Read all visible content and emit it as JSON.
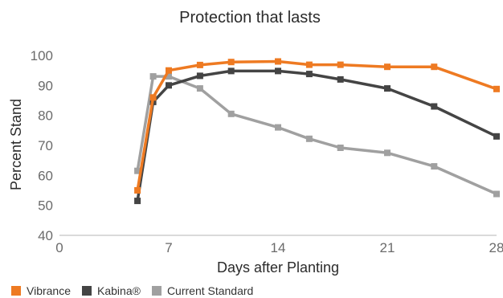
{
  "chart_data": {
    "type": "line",
    "title": "Protection that lasts",
    "xlabel": "Days after Planting",
    "ylabel": "Percent Stand",
    "xlim": [
      0,
      28
    ],
    "ylim": [
      40,
      100
    ],
    "xticks": [
      "0",
      "7",
      "14",
      "21",
      "28"
    ],
    "yticks": [
      "40",
      "50",
      "60",
      "70",
      "80",
      "90",
      "100"
    ],
    "grid": false,
    "legend_position": "bottom-left",
    "series": [
      {
        "name": "Vibrance",
        "color": "#EE7A22",
        "x": [
          5,
          6,
          7,
          9,
          11,
          14,
          16,
          18,
          21,
          24,
          28
        ],
        "y": [
          55,
          86,
          95,
          96.8,
          97.8,
          98,
          96.9,
          96.9,
          96.2,
          96.2,
          88.8
        ]
      },
      {
        "name": "Kabina®",
        "color": "#444444",
        "x": [
          5,
          6,
          7,
          9,
          11,
          14,
          16,
          18,
          21,
          24,
          28
        ],
        "y": [
          51.5,
          84.5,
          90,
          93.2,
          94.8,
          94.8,
          93.8,
          92,
          89,
          83,
          73
        ]
      },
      {
        "name": "Current Standard",
        "color": "#A0A0A0",
        "x": [
          5,
          6,
          7,
          9,
          11,
          14,
          16,
          18,
          21,
          24,
          28
        ],
        "y": [
          61.5,
          93,
          93,
          89,
          80.5,
          76,
          72.2,
          69.2,
          67.5,
          63,
          53.8
        ]
      }
    ]
  }
}
